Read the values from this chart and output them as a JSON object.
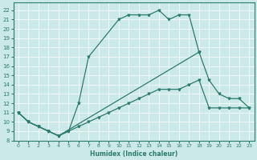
{
  "bg_color": "#cce9e9",
  "line_color": "#2d7a6e",
  "grid_color": "#b0d8d8",
  "xlabel": "Humidex (Indice chaleur)",
  "xlim": [
    -0.5,
    23.5
  ],
  "ylim": [
    8,
    22.8
  ],
  "yticks": [
    8,
    9,
    10,
    11,
    12,
    13,
    14,
    15,
    16,
    17,
    18,
    19,
    20,
    21,
    22
  ],
  "xticks": [
    0,
    1,
    2,
    3,
    4,
    5,
    6,
    7,
    8,
    9,
    10,
    11,
    12,
    13,
    14,
    15,
    16,
    17,
    18,
    19,
    20,
    21,
    22,
    23
  ],
  "line1_x": [
    0,
    1,
    2,
    3,
    4,
    5,
    6,
    7,
    10,
    11,
    12,
    13,
    14,
    15,
    16,
    17,
    18
  ],
  "line1_y": [
    11,
    10,
    9.5,
    9,
    8.5,
    9,
    12,
    17,
    21,
    21.5,
    21.5,
    21.5,
    22,
    21,
    21.5,
    21.5,
    17.5
  ],
  "line2_x": [
    0,
    1,
    2,
    3,
    4,
    5,
    6,
    7,
    8,
    9,
    10,
    11,
    12,
    13,
    14,
    15,
    16,
    17,
    18,
    19,
    20,
    21,
    22,
    23
  ],
  "line2_y": [
    11,
    10,
    9.5,
    9,
    8.5,
    9,
    9.5,
    10,
    10.5,
    11,
    11.5,
    12,
    12.5,
    13,
    13.5,
    13.5,
    13.5,
    14,
    14.5,
    11.5,
    11.5,
    11.5,
    11.5,
    11.5
  ],
  "line3_x": [
    0,
    1,
    2,
    3,
    4,
    18,
    19,
    20,
    21,
    22,
    23
  ],
  "line3_y": [
    11,
    10,
    9.5,
    9,
    8.5,
    17.5,
    14.5,
    13,
    12.5,
    12.5,
    11.5
  ]
}
